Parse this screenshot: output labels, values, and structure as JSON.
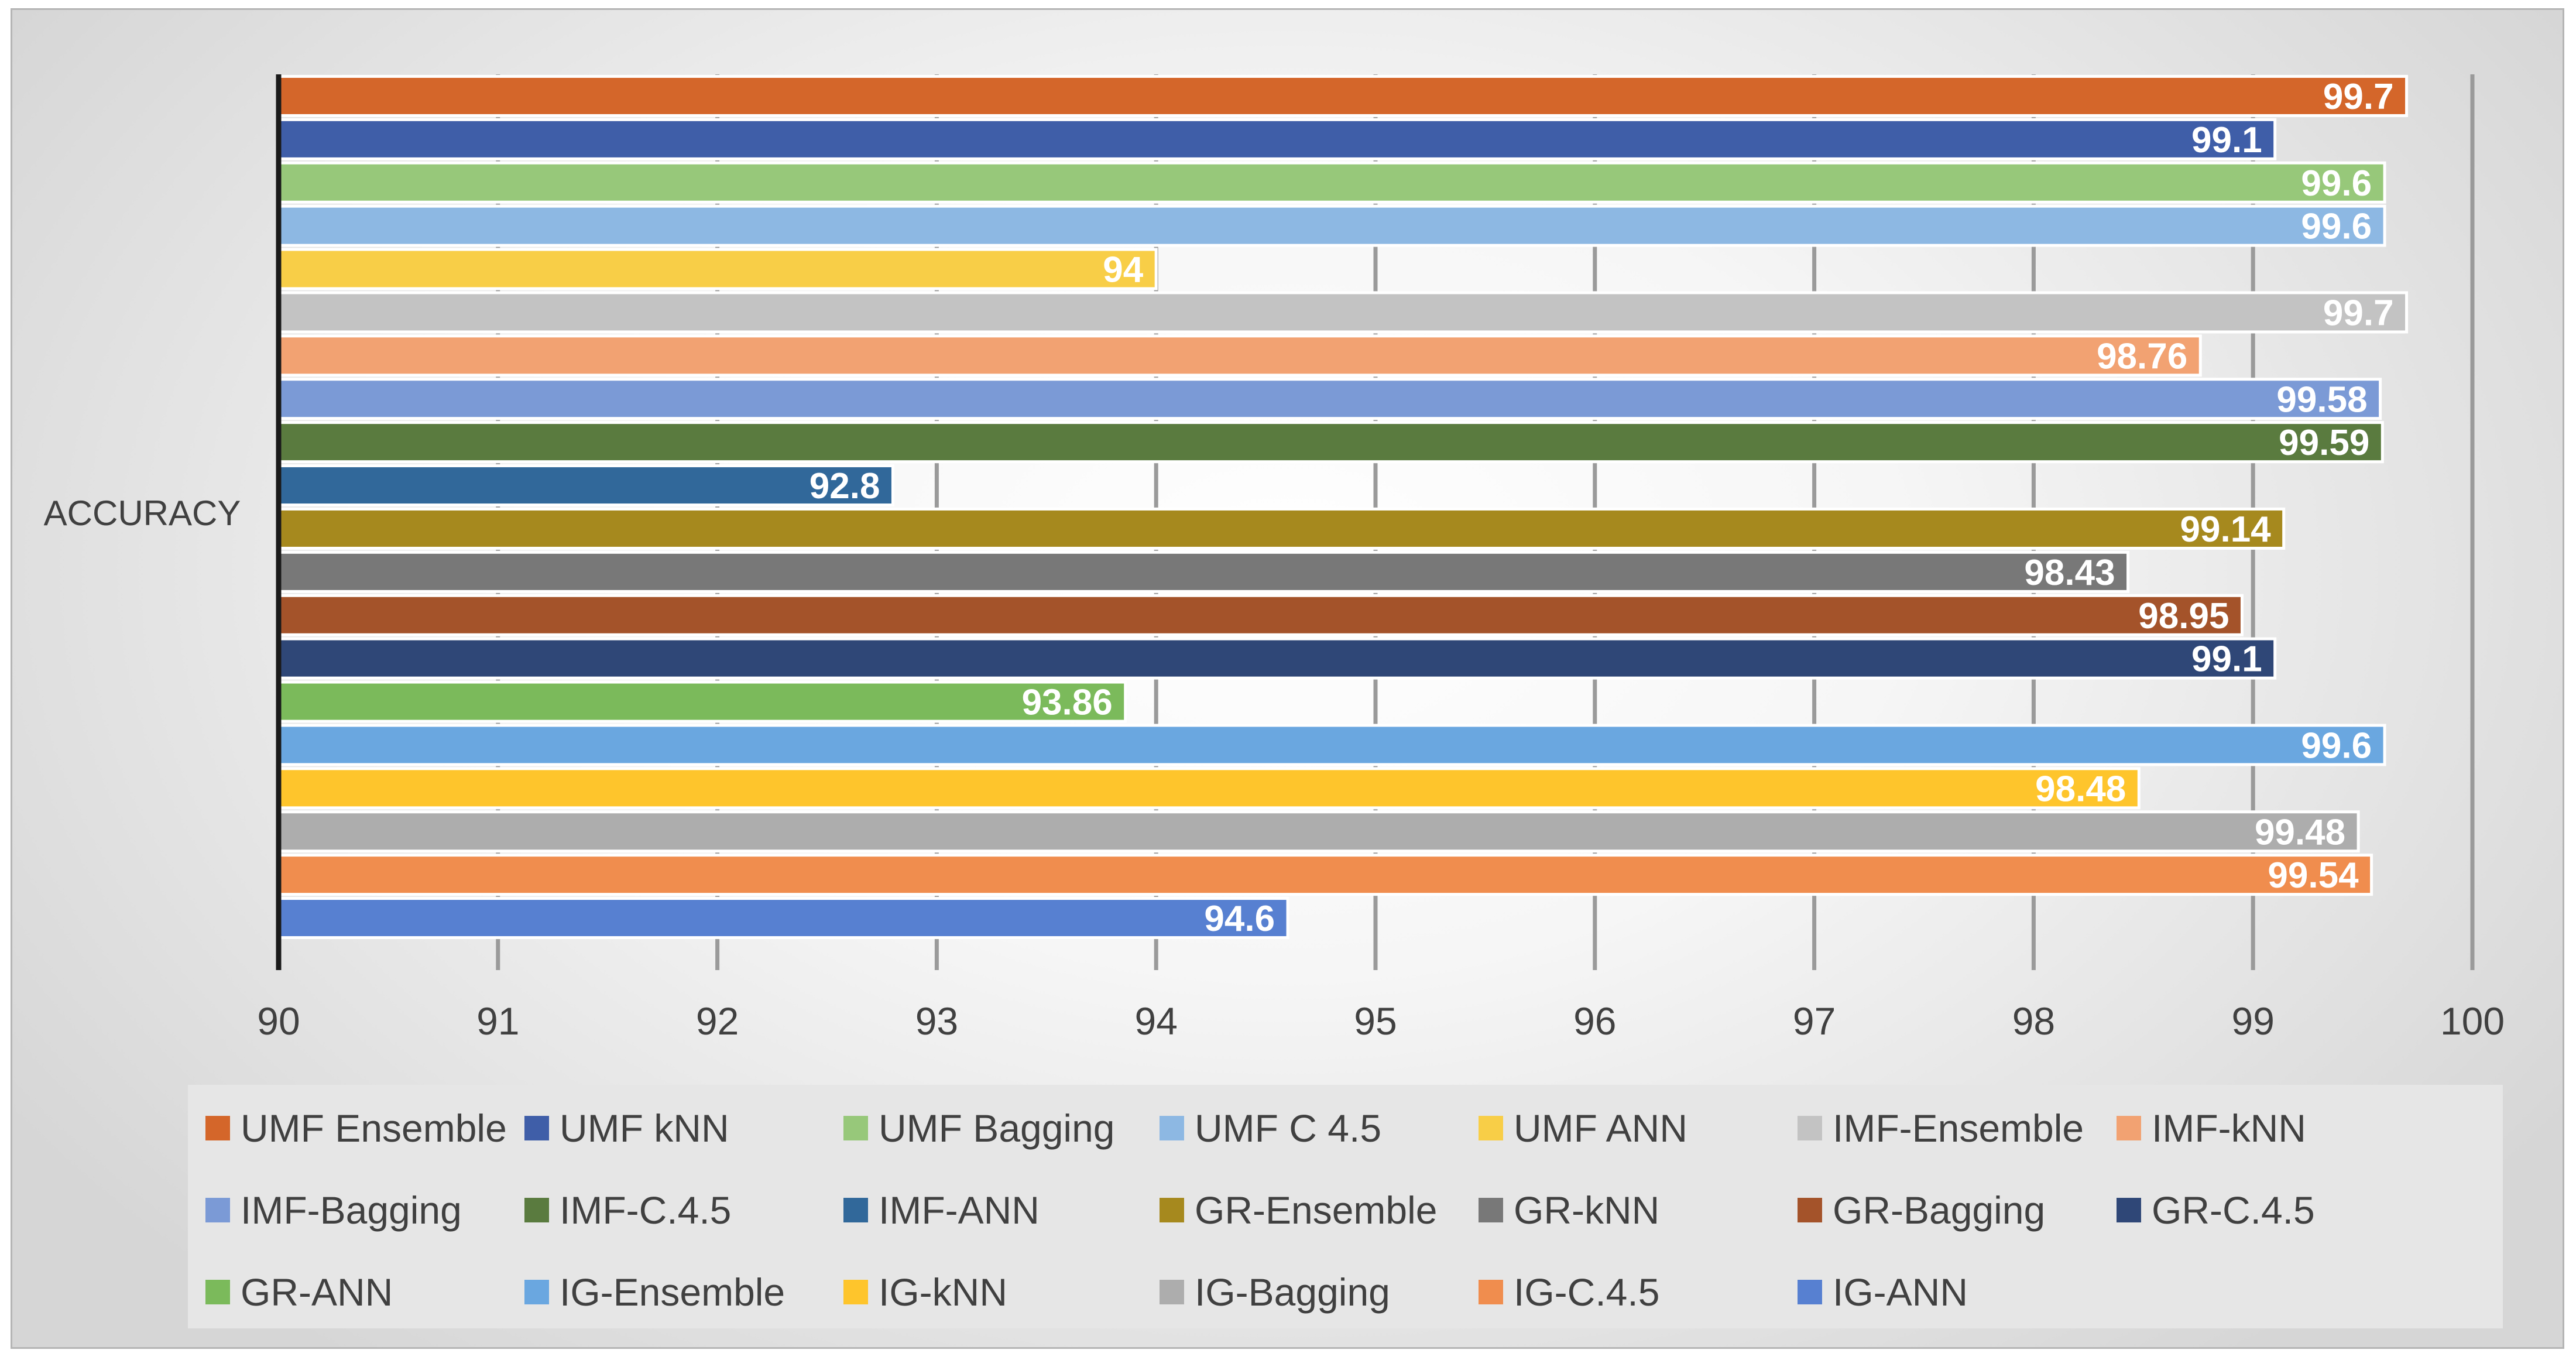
{
  "chart_data": {
    "type": "bar",
    "orientation": "horizontal",
    "category": "ACCURACY",
    "xlim": [
      90,
      100
    ],
    "xticks": [
      "90",
      "91",
      "92",
      "93",
      "94",
      "95",
      "96",
      "97",
      "98",
      "99",
      "100"
    ],
    "grid": true,
    "legend_position": "bottom",
    "series": [
      {
        "name": "UMF Ensemble",
        "value": 99.7,
        "label": "99.7",
        "color": "#d4662a"
      },
      {
        "name": "UMF kNN",
        "value": 99.1,
        "label": "99.1",
        "color": "#3f5ea8"
      },
      {
        "name": "UMF Bagging",
        "value": 99.6,
        "label": "99.6",
        "color": "#97c87a"
      },
      {
        "name": "UMF C 4.5",
        "value": 99.6,
        "label": "99.6",
        "color": "#8db8e3"
      },
      {
        "name": "UMF ANN",
        "value": 94,
        "label": "94",
        "color": "#f8ce47"
      },
      {
        "name": "IMF-Ensemble",
        "value": 99.7,
        "label": "99.7",
        "color": "#c3c3c3"
      },
      {
        "name": "IMF-kNN",
        "value": 98.76,
        "label": "98.76",
        "color": "#f2a272"
      },
      {
        "name": "IMF-Bagging",
        "value": 99.58,
        "label": "99.58",
        "color": "#7b9ad6"
      },
      {
        "name": "IMF-C.4.5",
        "value": 99.59,
        "label": "99.59",
        "color": "#5a7b3f"
      },
      {
        "name": "IMF-ANN",
        "value": 92.8,
        "label": "92.8",
        "color": "#31689a"
      },
      {
        "name": "GR-Ensemble",
        "value": 99.14,
        "label": "99.14",
        "color": "#a6891e"
      },
      {
        "name": "GR-kNN",
        "value": 98.43,
        "label": "98.43",
        "color": "#787878"
      },
      {
        "name": "GR-Bagging",
        "value": 98.95,
        "label": "98.95",
        "color": "#a4532a"
      },
      {
        "name": "GR-C.4.5",
        "value": 99.1,
        "label": "99.1",
        "color": "#2f4777"
      },
      {
        "name": "GR-ANN",
        "value": 93.86,
        "label": "93.86",
        "color": "#7bba5b"
      },
      {
        "name": "IG-Ensemble",
        "value": 99.6,
        "label": "99.6",
        "color": "#6aa7e0"
      },
      {
        "name": "IG-kNN",
        "value": 98.48,
        "label": "98.48",
        "color": "#fec52c"
      },
      {
        "name": "IG-Bagging",
        "value": 99.48,
        "label": "99.48",
        "color": "#adadad"
      },
      {
        "name": "IG-C.4.5",
        "value": 99.54,
        "label": "99.54",
        "color": "#f08d4e"
      },
      {
        "name": "IG-ANN",
        "value": 94.6,
        "label": "94.6",
        "color": "#5780d1"
      }
    ]
  }
}
